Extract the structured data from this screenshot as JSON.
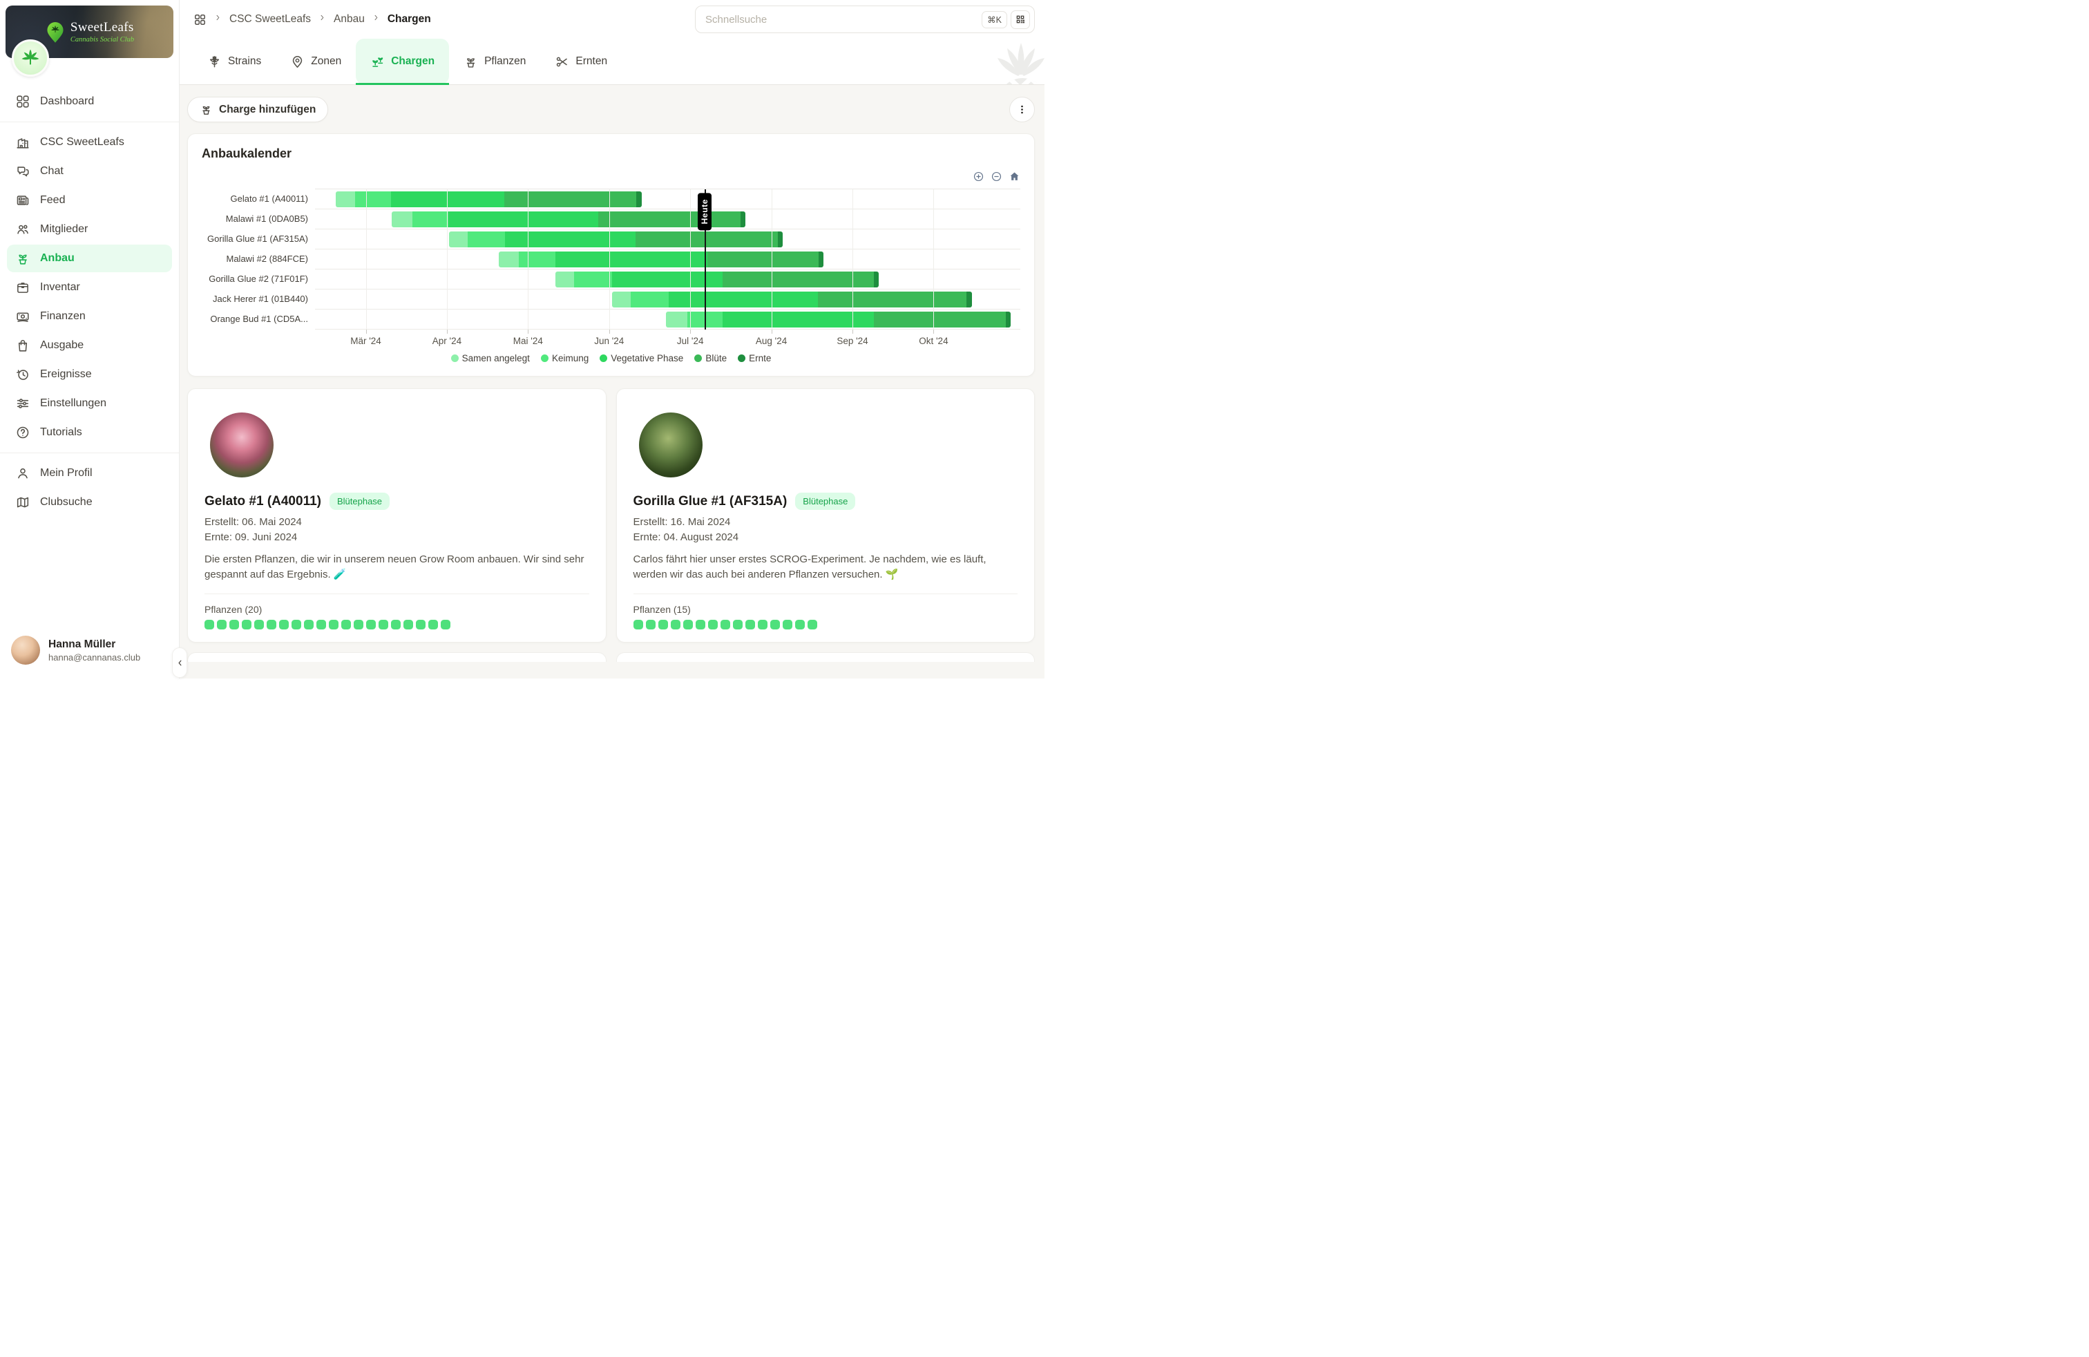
{
  "colors": {
    "accent": "#19B152",
    "accent_bg": "#E9FBEF",
    "underline": "#24C45E",
    "badge_bg": "#DCFCE7",
    "badge_text": "#16A34A",
    "today_line": "#141414",
    "chart_controls": "#64748B",
    "plant_dot": "#4FE07C"
  },
  "sidebar": {
    "brand": {
      "name": "SweetLeafs",
      "tagline": "Cannabis Social Club",
      "logo_icon": "leaf-pin-icon"
    },
    "items": [
      {
        "label": "Dashboard",
        "icon": "grid",
        "active": false,
        "section": 0
      },
      {
        "label": "CSC SweetLeafs",
        "icon": "building",
        "active": false,
        "section": 1
      },
      {
        "label": "Chat",
        "icon": "chat",
        "active": false,
        "section": 1
      },
      {
        "label": "Feed",
        "icon": "news",
        "active": false,
        "section": 1
      },
      {
        "label": "Mitglieder",
        "icon": "users",
        "active": false,
        "section": 1
      },
      {
        "label": "Anbau",
        "icon": "plant",
        "active": true,
        "section": 1
      },
      {
        "label": "Inventar",
        "icon": "box",
        "active": false,
        "section": 1
      },
      {
        "label": "Finanzen",
        "icon": "money",
        "active": false,
        "section": 1
      },
      {
        "label": "Ausgabe",
        "icon": "bag",
        "active": false,
        "section": 1
      },
      {
        "label": "Ereignisse",
        "icon": "history",
        "active": false,
        "section": 1
      },
      {
        "label": "Einstellungen",
        "icon": "sliders",
        "active": false,
        "section": 1
      },
      {
        "label": "Tutorials",
        "icon": "help",
        "active": false,
        "section": 1
      },
      {
        "label": "Mein Profil",
        "icon": "user",
        "active": false,
        "section": 2
      },
      {
        "label": "Clubsuche",
        "icon": "map",
        "active": false,
        "section": 2
      }
    ],
    "user": {
      "name": "Hanna Müller",
      "email": "hanna@cannanas.club"
    }
  },
  "header": {
    "breadcrumb": {
      "home_icon": "grid",
      "items": [
        "CSC SweetLeafs",
        "Anbau",
        "Chargen"
      ]
    },
    "search": {
      "placeholder": "Schnellsuche",
      "shortcut": "⌘K",
      "qr_icon": "qr"
    }
  },
  "tabs": [
    {
      "label": "Strains",
      "icon": "leaf",
      "active": false
    },
    {
      "label": "Zonen",
      "icon": "pin",
      "active": false
    },
    {
      "label": "Chargen",
      "icon": "seedlings",
      "active": true
    },
    {
      "label": "Pflanzen",
      "icon": "plant",
      "active": false
    },
    {
      "label": "Ernten",
      "icon": "scissors",
      "active": false
    }
  ],
  "toolbar": {
    "add_label": "Charge hinzufügen",
    "add_icon": "plant",
    "menu_icon": "kebab"
  },
  "chart_data": {
    "type": "gantt",
    "title": "Anbaukalender",
    "controls": [
      {
        "name": "zoom-in",
        "icon": "plus-circle"
      },
      {
        "name": "zoom-out",
        "icon": "minus-circle"
      },
      {
        "name": "reset-view",
        "icon": "home"
      }
    ],
    "axis_range": "Mitte Februar 2024 bis Anfang November 2024",
    "x_ticks": [
      {
        "label": "Mär '24",
        "pct": 7.2
      },
      {
        "label": "Apr '24",
        "pct": 18.7
      },
      {
        "label": "Mai '24",
        "pct": 30.2
      },
      {
        "label": "Jun '24",
        "pct": 41.7
      },
      {
        "label": "Jul '24",
        "pct": 53.2
      },
      {
        "label": "Aug '24",
        "pct": 64.7
      },
      {
        "label": "Sep '24",
        "pct": 76.2
      },
      {
        "label": "Okt '24",
        "pct": 87.7
      }
    ],
    "today": {
      "label": "Heute",
      "pct": 55.2,
      "approx_date": "06. Juli 2024"
    },
    "phases": [
      {
        "key": "samen",
        "label": "Samen angelegt",
        "color": "#8DF0AA"
      },
      {
        "key": "keimung",
        "label": "Keimung",
        "color": "#50E97D"
      },
      {
        "key": "veg",
        "label": "Vegetative Phase",
        "color": "#2ED85F"
      },
      {
        "key": "bluete",
        "label": "Blüte",
        "color": "#3BB957"
      },
      {
        "key": "ernte",
        "label": "Ernte",
        "color": "#1E8E3E"
      }
    ],
    "rows": [
      {
        "label": "Gelato #1 (A40011)",
        "segments": [
          [
            "samen",
            2.9,
            5.7,
            "20.02–26.02"
          ],
          [
            "keimung",
            5.7,
            10.8,
            "26.02–10.03"
          ],
          [
            "veg",
            10.8,
            26.8,
            "10.03–22.04"
          ],
          [
            "bluete",
            26.8,
            45.5,
            "22.04–09.06"
          ],
          [
            "ernte",
            45.5,
            46.3,
            "09.06.2024"
          ]
        ]
      },
      {
        "label": "Malawi #1 (0DA0B5)",
        "segments": [
          [
            "samen",
            10.9,
            13.8,
            "10.03–18.03"
          ],
          [
            "keimung",
            13.8,
            18.9,
            "18.03–01.04"
          ],
          [
            "veg",
            18.9,
            40.2,
            "01.04–27.05"
          ],
          [
            "bluete",
            40.2,
            60.3,
            "27.05–19.07"
          ],
          [
            "ernte",
            60.3,
            61.0,
            "19.07.2024"
          ]
        ]
      },
      {
        "label": "Gorilla Glue #1 (AF315A)",
        "segments": [
          [
            "samen",
            19.0,
            21.6,
            "01.04–08.04"
          ],
          [
            "keimung",
            21.6,
            26.9,
            "08.04–22.04"
          ],
          [
            "veg",
            26.9,
            45.4,
            "22.04–10.06"
          ],
          [
            "bluete",
            45.4,
            65.6,
            "10.06–04.08"
          ],
          [
            "ernte",
            65.6,
            66.3,
            "04.08.2024"
          ]
        ]
      },
      {
        "label": "Malawi #2 (884FCE)",
        "segments": [
          [
            "samen",
            26.1,
            28.9,
            "20.04–27.04"
          ],
          [
            "keimung",
            28.9,
            34.1,
            "27.04–11.05"
          ],
          [
            "veg",
            34.1,
            55.6,
            "11.05–07.07"
          ],
          [
            "bluete",
            55.6,
            71.4,
            "07.07–19.08"
          ],
          [
            "ernte",
            71.4,
            72.1,
            "19.08.2024"
          ]
        ]
      },
      {
        "label": "Gorilla Glue #2 (71F01F)",
        "segments": [
          [
            "samen",
            34.1,
            36.7,
            "11.05–18.05"
          ],
          [
            "keimung",
            36.7,
            42.1,
            "18.05–02.06"
          ],
          [
            "veg",
            42.1,
            57.8,
            "02.06–13.07"
          ],
          [
            "bluete",
            57.8,
            79.2,
            "13.07–09.09"
          ],
          [
            "ernte",
            79.2,
            79.9,
            "09.09.2024"
          ]
        ]
      },
      {
        "label": "Jack Herer #1 (01B440)",
        "segments": [
          [
            "samen",
            42.1,
            44.8,
            "02.06–09.06"
          ],
          [
            "keimung",
            44.8,
            50.1,
            "09.06–23.06"
          ],
          [
            "veg",
            50.1,
            71.3,
            "23.06–18.08"
          ],
          [
            "bluete",
            71.3,
            92.4,
            "18.08–14.10"
          ],
          [
            "ernte",
            92.4,
            93.1,
            "14.10.2024"
          ]
        ]
      },
      {
        "label": "Orange Bud #1 (CD5A...",
        "segments": [
          [
            "samen",
            49.8,
            52.8,
            "22.06–30.06"
          ],
          [
            "keimung",
            52.8,
            57.8,
            "30.06–13.07"
          ],
          [
            "veg",
            57.8,
            79.2,
            "13.07–09.09"
          ],
          [
            "bluete",
            79.2,
            97.9,
            "09.09–28.10"
          ],
          [
            "ernte",
            97.9,
            98.6,
            "28.10.2024"
          ]
        ]
      }
    ],
    "legend_position": "bottom-center",
    "grid": true
  },
  "cards": [
    {
      "title": "Gelato #1 (A40011)",
      "badge": "Blütephase",
      "created": "Erstellt: 06. Mai 2024",
      "harvest": "Ernte: 09. Juni 2024",
      "description": "Die ersten Pflanzen, die wir in unserem neuen Grow Room anbauen. Wir sind sehr gespannt auf das Ergebnis. 🧪",
      "plants_label": "Pflanzen (20)",
      "plants_count": 20,
      "image": "pink-bud"
    },
    {
      "title": "Gorilla Glue #1 (AF315A)",
      "badge": "Blütephase",
      "created": "Erstellt: 16. Mai 2024",
      "harvest": "Ernte: 04. August 2024",
      "description": "Carlos fährt hier unser erstes SCROG-Experiment. Je nachdem, wie es läuft, werden wir das auch bei anderen Pflanzen versuchen. 🌱",
      "plants_label": "Pflanzen (15)",
      "plants_count": 15,
      "image": "green-bud"
    }
  ]
}
